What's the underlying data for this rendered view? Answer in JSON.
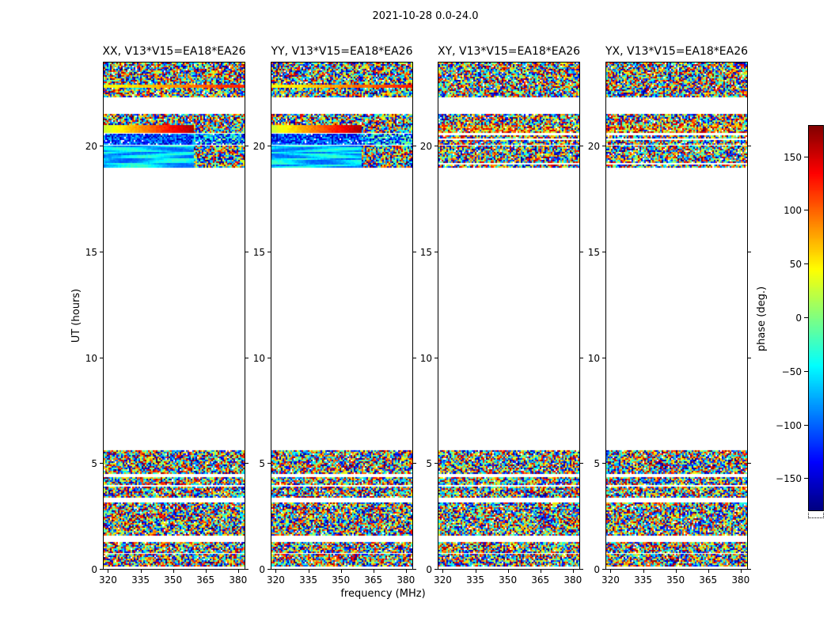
{
  "chart_data": {
    "type": "heatmap",
    "title": "2021-10-28 0.0-24.0",
    "xlabel": "frequency (MHz)",
    "ylabel": "UT (hours)",
    "colorbar_label": "phase (deg.)",
    "colormap": "jet",
    "x_range": [
      318,
      383
    ],
    "y_range": [
      0,
      24
    ],
    "x_ticks": [
      320,
      335,
      350,
      365,
      380
    ],
    "y_ticks": [
      0,
      5,
      10,
      15,
      20
    ],
    "colorbar_range": [
      -180,
      180
    ],
    "colorbar_ticks": [
      150,
      100,
      50,
      0,
      -50,
      -100,
      -150
    ],
    "panels": [
      {
        "id": "xx",
        "title": "XX, V13*V15=EA18*EA26",
        "coherent": true
      },
      {
        "id": "yy",
        "title": "YY, V13*V15=EA18*EA26",
        "coherent": true
      },
      {
        "id": "xy",
        "title": "XY, V13*V15=EA18*EA26",
        "coherent": false
      },
      {
        "id": "yx",
        "title": "YX, V13*V15=EA18*EA26",
        "coherent": false
      }
    ],
    "time_regions": [
      {
        "t0": 23.3,
        "t1": 24.0,
        "style": "noise"
      },
      {
        "t0": 22.95,
        "t1": 23.25,
        "style": "noise"
      },
      {
        "t0": 22.8,
        "t1": 22.95,
        "style": "noise",
        "coherent_style": "warmline"
      },
      {
        "t0": 22.35,
        "t1": 22.8,
        "style": "noise"
      },
      {
        "t0": 21.05,
        "t1": 21.55,
        "style": "noise"
      },
      {
        "t0": 20.7,
        "t1": 21.05,
        "style": "warmnoise",
        "coherent_style": "warm"
      },
      {
        "t0": 20.15,
        "t1": 20.62,
        "style": "noise",
        "coherent_style": "bluenoise"
      },
      {
        "t0": 19.05,
        "t1": 20.08,
        "style": "noise",
        "coherent_style": "cool"
      },
      {
        "t0": 4.5,
        "t1": 5.62,
        "style": "noise"
      },
      {
        "t0": 3.4,
        "t1": 4.35,
        "style": "noise"
      },
      {
        "t0": 1.6,
        "t1": 3.15,
        "style": "noise"
      },
      {
        "t0": 0.8,
        "t1": 1.35,
        "style": "noise"
      },
      {
        "t0": 0.12,
        "t1": 0.72,
        "style": "noise"
      }
    ],
    "blank_interval": [
      5.62,
      19.05
    ]
  }
}
